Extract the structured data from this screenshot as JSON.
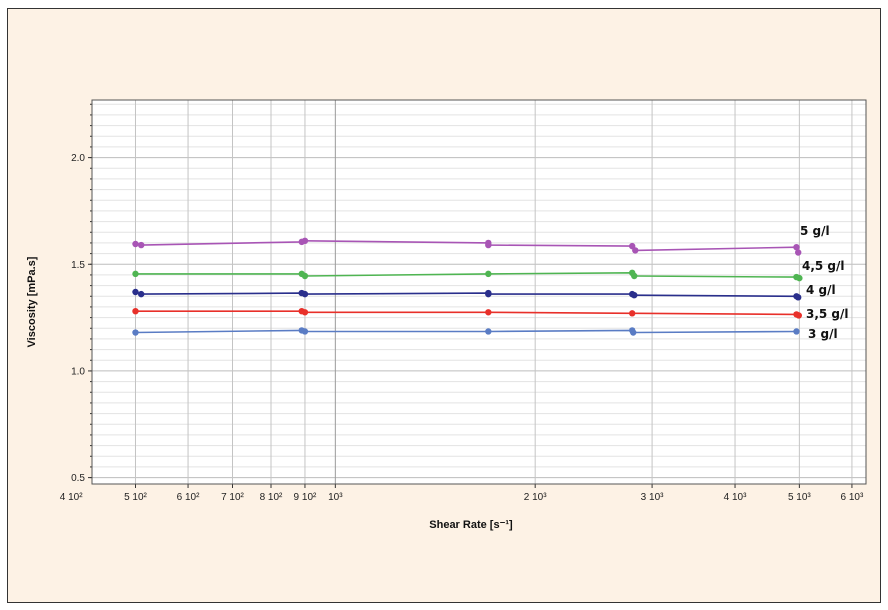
{
  "chart_data": {
    "type": "line",
    "xlabel": "Shear Rate [s⁻¹]",
    "ylabel": "Viscosity [mPa.s]",
    "xscale": "log",
    "xlim": [
      430,
      6300
    ],
    "ylim": [
      0.47,
      2.27
    ],
    "grid": true,
    "legend": "inline labels at right end of each series",
    "x_ticks": [
      {
        "value": 400,
        "label": "4 10²"
      },
      {
        "value": 500,
        "label": "5 10²"
      },
      {
        "value": 600,
        "label": "6 10²"
      },
      {
        "value": 700,
        "label": "7 10²"
      },
      {
        "value": 800,
        "label": "8 10²"
      },
      {
        "value": 900,
        "label": "9 10²"
      },
      {
        "value": 1000,
        "label": "10³"
      },
      {
        "value": 2000,
        "label": "2 10³"
      },
      {
        "value": 3000,
        "label": "3 10³"
      },
      {
        "value": 4000,
        "label": "4 10³"
      },
      {
        "value": 5000,
        "label": "5 10³"
      },
      {
        "value": 6000,
        "label": "6 10³"
      }
    ],
    "y_ticks": [
      {
        "value": 0.5,
        "label": "0.5"
      },
      {
        "value": 1.0,
        "label": "1.0"
      },
      {
        "value": 1.5,
        "label": "1.5"
      },
      {
        "value": 2.0,
        "label": "2.0"
      }
    ],
    "series": [
      {
        "name": "5 g/l",
        "color": "#a855b5",
        "x": [
          500,
          510,
          890,
          900,
          1700,
          1700,
          2800,
          2830,
          4950,
          4980
        ],
        "y": [
          1.595,
          1.59,
          1.605,
          1.61,
          1.6,
          1.59,
          1.585,
          1.565,
          1.58,
          1.555
        ]
      },
      {
        "name": "4,5 g/l",
        "color": "#4fb552",
        "x": [
          500,
          890,
          900,
          1700,
          2800,
          2820,
          4950,
          5000
        ],
        "y": [
          1.455,
          1.455,
          1.445,
          1.455,
          1.46,
          1.445,
          1.44,
          1.435
        ]
      },
      {
        "name": "4 g/l",
        "color": "#2a2f8c",
        "x": [
          500,
          510,
          890,
          900,
          1700,
          1700,
          2800,
          2820,
          4950,
          4980
        ],
        "y": [
          1.37,
          1.36,
          1.365,
          1.36,
          1.365,
          1.36,
          1.36,
          1.355,
          1.35,
          1.345
        ]
      },
      {
        "name": "3,5 g/l",
        "color": "#e8302a",
        "x": [
          500,
          890,
          900,
          1700,
          2800,
          4950,
          4990
        ],
        "y": [
          1.28,
          1.28,
          1.275,
          1.275,
          1.27,
          1.265,
          1.26
        ]
      },
      {
        "name": "3 g/l",
        "color": "#5a7cc4",
        "x": [
          500,
          890,
          900,
          1700,
          2800,
          2810,
          4950
        ],
        "y": [
          1.18,
          1.19,
          1.185,
          1.185,
          1.19,
          1.18,
          1.185
        ]
      }
    ]
  }
}
